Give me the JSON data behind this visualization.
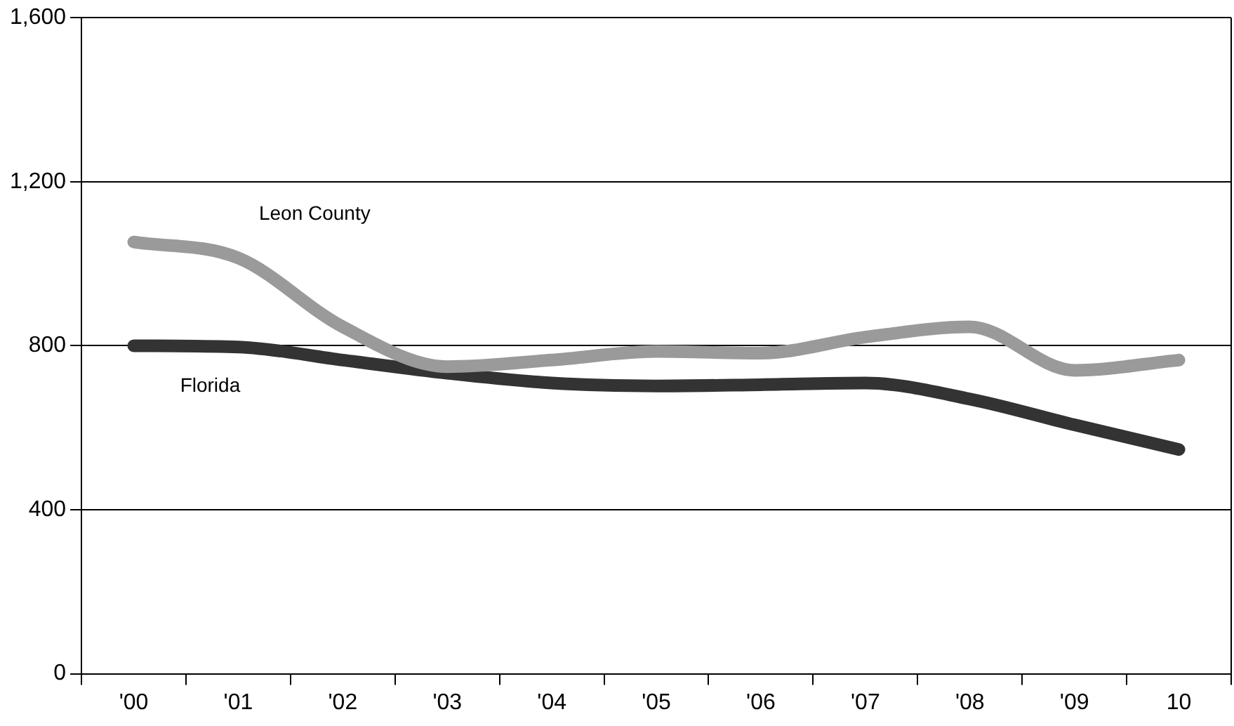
{
  "chart_data": {
    "type": "line",
    "categories": [
      "'00",
      "'01",
      "'02",
      "'03",
      "'04",
      "'05",
      "'06",
      "'07",
      "'08",
      "'09",
      "10"
    ],
    "series": [
      {
        "name": "Leon County",
        "color": "#9a9a9a",
        "values": [
          1053,
          1014,
          846,
          749,
          765,
          786,
          782,
          821,
          846,
          740,
          765
        ]
      },
      {
        "name": "Florida",
        "color": "#333333",
        "values": [
          800,
          797,
          765,
          733,
          709,
          702,
          705,
          709,
          670,
          607,
          547
        ]
      }
    ],
    "ylim": [
      0,
      1600
    ],
    "yticks": [
      0,
      {
        "value": 400,
        "label": "400"
      },
      {
        "value": 800,
        "label": "800"
      },
      {
        "value": 1200,
        "label": "1,200"
      },
      {
        "value": 1600,
        "label": "1,600"
      }
    ],
    "grid": "y",
    "legend": false,
    "marker": "none",
    "line_style": "solid"
  }
}
